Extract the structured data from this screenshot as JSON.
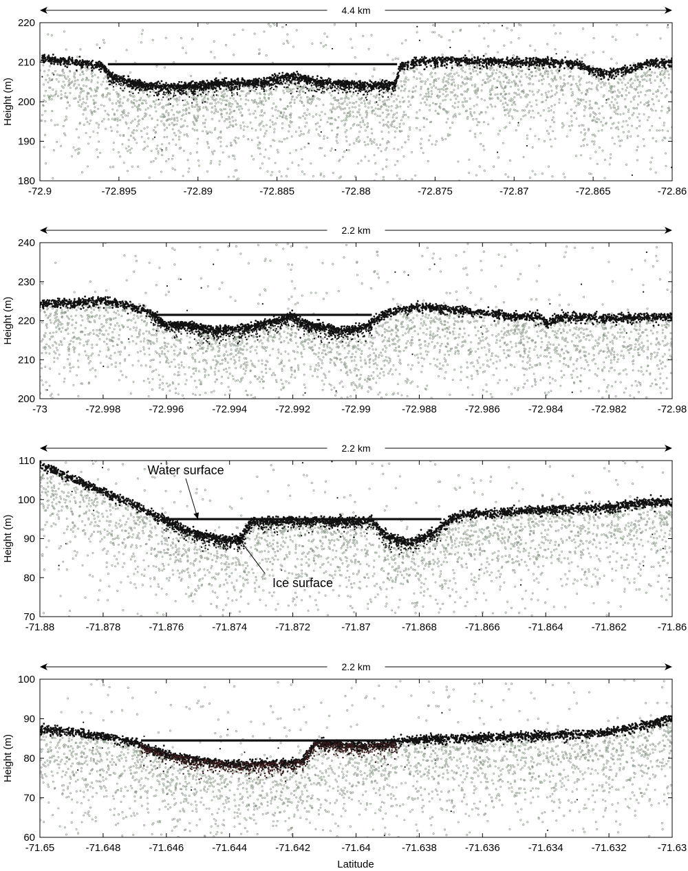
{
  "figure": {
    "xlabel": "Latitude",
    "ylabel": "Height (m)"
  },
  "colors": {
    "signal": "#111111",
    "noise": "#8c9c8a",
    "ice_shadow": "#3a1a1a",
    "axis": "#000000"
  },
  "chart_data": [
    {
      "type": "scatter",
      "title": "",
      "span_label": "4.4 km",
      "xlabel": "",
      "ylabel": "Height (m)",
      "xlim": [
        -72.9,
        -72.86
      ],
      "ylim": [
        180,
        220
      ],
      "xticks": [
        "-72.9",
        "-72.895",
        "-72.89",
        "-72.885",
        "-72.88",
        "-72.875",
        "-72.87",
        "-72.865",
        "-72.86"
      ],
      "yticks": [
        "180",
        "190",
        "200",
        "210",
        "220"
      ],
      "water_surface": {
        "height": 209.5,
        "x_range": [
          -72.8957,
          -72.8774
        ]
      },
      "surface_profile": [
        [
          -72.9,
          211.5
        ],
        [
          -72.898,
          210.5
        ],
        [
          -72.896,
          209.5
        ],
        [
          -72.8955,
          207
        ],
        [
          -72.894,
          205
        ],
        [
          -72.892,
          204
        ],
        [
          -72.889,
          205
        ],
        [
          -72.886,
          205.5
        ],
        [
          -72.884,
          207
        ],
        [
          -72.8825,
          205.5
        ],
        [
          -72.881,
          205
        ],
        [
          -72.879,
          204.5
        ],
        [
          -72.8775,
          205
        ],
        [
          -72.8772,
          209.5
        ],
        [
          -72.876,
          210.5
        ],
        [
          -72.874,
          211
        ],
        [
          -72.871,
          210.5
        ],
        [
          -72.868,
          210.5
        ],
        [
          -72.866,
          210
        ],
        [
          -72.865,
          208
        ],
        [
          -72.864,
          207.5
        ],
        [
          -72.8625,
          209
        ],
        [
          -72.861,
          210.5
        ],
        [
          -72.86,
          210.5
        ]
      ],
      "ice_surface": {
        "x_range": [
          -72.8955,
          -72.8774
        ],
        "depth_below_water": 5
      },
      "noise_density": 0.6
    },
    {
      "type": "scatter",
      "title": "",
      "span_label": "2.2 km",
      "xlabel": "",
      "ylabel": "Height (m)",
      "xlim": [
        -73,
        -72.98
      ],
      "ylim": [
        200,
        240
      ],
      "xticks": [
        "-73",
        "-72.998",
        "-72.996",
        "-72.994",
        "-72.992",
        "-72.99",
        "-72.988",
        "-72.986",
        "-72.984",
        "-72.982",
        "-72.98"
      ],
      "yticks": [
        "200",
        "210",
        "220",
        "230",
        "240"
      ],
      "water_surface": {
        "height": 221.5,
        "x_range": [
          -72.9965,
          -72.9895
        ]
      },
      "surface_profile": [
        [
          -73,
          225
        ],
        [
          -72.999,
          225
        ],
        [
          -72.998,
          225.5
        ],
        [
          -72.9975,
          225
        ],
        [
          -72.997,
          224
        ],
        [
          -72.9965,
          222.5
        ],
        [
          -72.996,
          219
        ],
        [
          -72.9955,
          219.5
        ],
        [
          -72.9945,
          218
        ],
        [
          -72.9935,
          218.5
        ],
        [
          -72.9925,
          220.5
        ],
        [
          -72.992,
          221.5
        ],
        [
          -72.9915,
          219.5
        ],
        [
          -72.9905,
          218
        ],
        [
          -72.9898,
          218.5
        ],
        [
          -72.989,
          222.5
        ],
        [
          -72.988,
          224
        ],
        [
          -72.9865,
          223
        ],
        [
          -72.985,
          221.5
        ],
        [
          -72.9842,
          221.5
        ],
        [
          -72.984,
          220
        ],
        [
          -72.9835,
          221.5
        ],
        [
          -72.982,
          221
        ],
        [
          -72.98,
          221.5
        ]
      ],
      "ice_surface": {
        "x_range": [
          -72.9962,
          -72.9897
        ],
        "depth_below_water": 4
      },
      "noise_density": 0.45
    },
    {
      "type": "scatter",
      "title": "",
      "span_label": "2.2 km",
      "xlabel": "",
      "ylabel": "Height (m)",
      "xlim": [
        -71.88,
        -71.86
      ],
      "ylim": [
        70,
        110
      ],
      "xticks": [
        "-71.88",
        "-71.878",
        "-71.876",
        "-71.874",
        "-71.872",
        "-71.87",
        "-71.868",
        "-71.866",
        "-71.864",
        "-71.862",
        "-71.86"
      ],
      "yticks": [
        "70",
        "80",
        "90",
        "100",
        "110"
      ],
      "water_surface": {
        "height": 95,
        "x_range": [
          -71.8761,
          -71.8673
        ]
      },
      "surface_profile": [
        [
          -71.88,
          109.5
        ],
        [
          -71.879,
          106
        ],
        [
          -71.878,
          102.5
        ],
        [
          -71.877,
          99
        ],
        [
          -71.8761,
          95.5
        ],
        [
          -71.8755,
          93
        ],
        [
          -71.8745,
          90.5
        ],
        [
          -71.8737,
          90
        ],
        [
          -71.8733,
          95
        ],
        [
          -71.8695,
          95
        ],
        [
          -71.869,
          91
        ],
        [
          -71.8683,
          89.5
        ],
        [
          -71.8675,
          92
        ],
        [
          -71.867,
          95.5
        ],
        [
          -71.8665,
          96.5
        ],
        [
          -71.865,
          97.5
        ],
        [
          -71.8635,
          98
        ],
        [
          -71.862,
          98.5
        ],
        [
          -71.861,
          99.5
        ],
        [
          -71.86,
          100
        ]
      ],
      "ice_surface": {
        "x_range": [
          -71.8761,
          -71.8733
        ],
        "depth_below_water": 4
      },
      "annotations": [
        {
          "text": "Water surface",
          "target": [
            -71.875,
            95
          ]
        },
        {
          "text": "Ice surface",
          "target": [
            -71.8738,
            91
          ]
        }
      ],
      "noise_density": 0.45
    },
    {
      "type": "scatter",
      "title": "",
      "span_label": "2.2 km",
      "xlabel": "Latitude",
      "ylabel": "Height (m)",
      "xlim": [
        -71.65,
        -71.63
      ],
      "ylim": [
        60,
        100
      ],
      "xticks": [
        "-71.65",
        "-71.648",
        "-71.646",
        "-71.644",
        "-71.642",
        "-71.64",
        "-71.638",
        "-71.636",
        "-71.634",
        "-71.632",
        "-71.63"
      ],
      "yticks": [
        "60",
        "70",
        "80",
        "90",
        "100"
      ],
      "water_surface": {
        "height": 84.5,
        "x_range": [
          -71.6468,
          -71.6387
        ]
      },
      "surface_profile": [
        [
          -71.65,
          88
        ],
        [
          -71.649,
          87
        ],
        [
          -71.648,
          86
        ],
        [
          -71.647,
          84.5
        ],
        [
          -71.6465,
          82.5
        ],
        [
          -71.6455,
          80.5
        ],
        [
          -71.644,
          79
        ],
        [
          -71.6425,
          79
        ],
        [
          -71.6417,
          79.5
        ],
        [
          -71.6413,
          84.5
        ],
        [
          -71.6405,
          84
        ],
        [
          -71.64,
          83.5
        ],
        [
          -71.639,
          84
        ],
        [
          -71.6385,
          85
        ],
        [
          -71.637,
          85.5
        ],
        [
          -71.635,
          86
        ],
        [
          -71.633,
          86.5
        ],
        [
          -71.632,
          87
        ],
        [
          -71.631,
          88.5
        ],
        [
          -71.63,
          90.5
        ]
      ],
      "ice_surface": {
        "x_range": [
          -71.6468,
          -71.6414
        ],
        "depth_below_water": 6
      },
      "noise_density": 0.45
    }
  ]
}
